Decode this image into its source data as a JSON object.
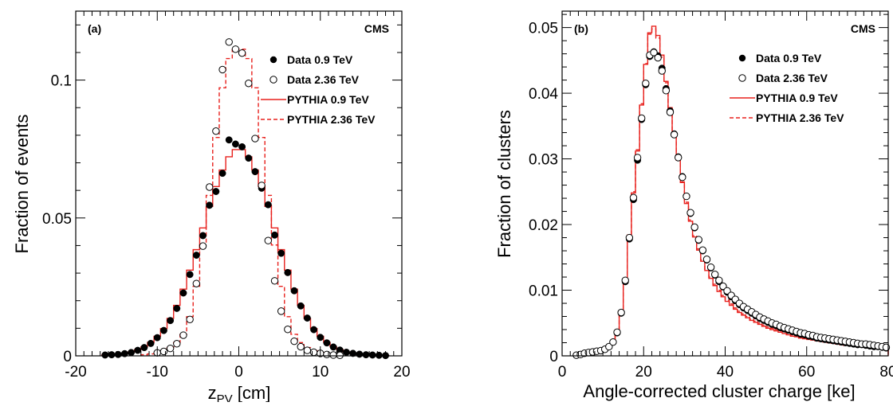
{
  "chart_data": [
    {
      "type": "line",
      "panel_label": "(a)",
      "experiment_label": "CMS",
      "xlabel": "z",
      "xlabel_sub": "PV",
      "xlabel_unit": " [cm]",
      "ylabel": "Fraction of events",
      "xlim": [
        -20,
        20
      ],
      "ylim": [
        0,
        0.125
      ],
      "xticks": [
        -20,
        -10,
        0,
        10,
        20
      ],
      "yticks": [
        0,
        0.05,
        0.1
      ],
      "ytick_labels": [
        "0",
        "0.05",
        "0.1"
      ],
      "legend_position": "top-right",
      "colors": {
        "data": "#000000",
        "pythia": "#e8211d"
      },
      "bin_width": 0.8,
      "series": [
        {
          "name": "Data 0.9 TeV",
          "style": "filled-circle",
          "x": [
            -16.4,
            -15.6,
            -14.8,
            -14.0,
            -13.2,
            -12.4,
            -11.6,
            -10.8,
            -10.0,
            -9.2,
            -8.4,
            -7.6,
            -6.8,
            -6.0,
            -5.2,
            -4.4,
            -3.6,
            -2.8,
            -2.0,
            -1.2,
            -0.4,
            0.4,
            1.2,
            2.0,
            2.8,
            3.6,
            4.4,
            5.2,
            6.0,
            6.8,
            7.6,
            8.4,
            9.2,
            10.0,
            10.8,
            11.6,
            12.4,
            13.2,
            14.0,
            14.8,
            15.6,
            16.4,
            17.2,
            18.0
          ],
          "y": [
            0.0003,
            0.0004,
            0.0005,
            0.0008,
            0.0012,
            0.002,
            0.003,
            0.0045,
            0.0066,
            0.0092,
            0.0128,
            0.0172,
            0.0228,
            0.0295,
            0.0365,
            0.0436,
            0.0546,
            0.0596,
            0.0662,
            0.0783,
            0.0768,
            0.0758,
            0.0717,
            0.0668,
            0.0608,
            0.0548,
            0.0438,
            0.0372,
            0.0302,
            0.0236,
            0.0181,
            0.0137,
            0.0095,
            0.0067,
            0.0047,
            0.0032,
            0.0021,
            0.0013,
            0.0009,
            0.0006,
            0.0004,
            0.0003,
            0.0002,
            0.0001
          ]
        },
        {
          "name": "Data 2.36 TeV",
          "style": "open-circle",
          "x": [
            -10.0,
            -9.2,
            -8.4,
            -7.6,
            -6.8,
            -6.0,
            -5.2,
            -4.4,
            -3.6,
            -2.8,
            -2.0,
            -1.2,
            -0.4,
            0.4,
            1.2,
            2.0,
            2.8,
            3.6,
            4.4,
            5.2,
            6.0,
            6.8,
            7.6,
            8.4,
            9.2,
            10.0,
            10.8,
            11.6,
            12.4
          ],
          "y": [
            0.0011,
            0.0016,
            0.0027,
            0.0044,
            0.0075,
            0.0132,
            0.0262,
            0.0398,
            0.0612,
            0.0815,
            0.1038,
            0.1138,
            0.1112,
            0.1098,
            0.0988,
            0.0788,
            0.0618,
            0.0418,
            0.0272,
            0.0162,
            0.0096,
            0.0053,
            0.0033,
            0.002,
            0.0013,
            0.0009,
            0.0005,
            0.0003,
            0.0002
          ]
        },
        {
          "name": "PYTHIA 0.9 TeV",
          "style": "solid-step",
          "x": [
            -16.4,
            -15.6,
            -14.8,
            -14.0,
            -13.2,
            -12.4,
            -11.6,
            -10.8,
            -10.0,
            -9.2,
            -8.4,
            -7.6,
            -6.8,
            -6.0,
            -5.2,
            -4.4,
            -3.6,
            -2.8,
            -2.0,
            -1.2,
            -0.4,
            0.4,
            1.2,
            2.0,
            2.8,
            3.6,
            4.4,
            5.2,
            6.0,
            6.8,
            7.6,
            8.4,
            9.2,
            10.0,
            10.8,
            11.6,
            12.4,
            13.2,
            14.0,
            14.8,
            15.6,
            16.4,
            17.2,
            18.0
          ],
          "y": [
            0.0003,
            0.0004,
            0.0006,
            0.0009,
            0.0014,
            0.0022,
            0.0033,
            0.0049,
            0.0071,
            0.0099,
            0.0136,
            0.0183,
            0.0242,
            0.0311,
            0.0385,
            0.0464,
            0.0542,
            0.0614,
            0.0674,
            0.0722,
            0.0748,
            0.0748,
            0.0722,
            0.0674,
            0.0614,
            0.0542,
            0.0464,
            0.0385,
            0.0311,
            0.0242,
            0.0183,
            0.0136,
            0.0099,
            0.0071,
            0.0049,
            0.0033,
            0.0022,
            0.0014,
            0.0009,
            0.0006,
            0.0004,
            0.0003,
            0.0002,
            0.0001
          ]
        },
        {
          "name": "PYTHIA 2.36 TeV",
          "style": "dashed-step",
          "x": [
            -11.6,
            -10.8,
            -10.0,
            -9.2,
            -8.4,
            -7.6,
            -6.8,
            -6.0,
            -5.2,
            -4.4,
            -3.6,
            -2.8,
            -2.0,
            -1.2,
            -0.4,
            0.4,
            1.2,
            2.0,
            2.8,
            3.6,
            4.4,
            5.2,
            6.0,
            6.8,
            7.6,
            8.4,
            9.2,
            10.0,
            10.8,
            11.6,
            12.4
          ],
          "y": [
            0.0004,
            0.0007,
            0.0012,
            0.0019,
            0.003,
            0.0048,
            0.0078,
            0.0142,
            0.0252,
            0.0402,
            0.0582,
            0.0792,
            0.0972,
            0.1078,
            0.1112,
            0.1112,
            0.1078,
            0.0972,
            0.0792,
            0.0582,
            0.0402,
            0.0252,
            0.0142,
            0.0078,
            0.0048,
            0.003,
            0.0019,
            0.0012,
            0.0007,
            0.0004,
            0.0002
          ]
        }
      ]
    },
    {
      "type": "line",
      "panel_label": "(b)",
      "experiment_label": "CMS",
      "xlabel": "Angle-corrected cluster charge [ke]",
      "ylabel": "Fraction of clusters",
      "xlim": [
        0,
        80
      ],
      "ylim": [
        0,
        0.0525
      ],
      "xticks": [
        0,
        20,
        40,
        60,
        80
      ],
      "yticks": [
        0,
        0.01,
        0.02,
        0.03,
        0.04,
        0.05
      ],
      "ytick_labels": [
        "0",
        "0.01",
        "0.02",
        "0.03",
        "0.04",
        "0.05"
      ],
      "legend_position": "top-right",
      "colors": {
        "data": "#000000",
        "pythia": "#e8211d"
      },
      "bin_width": 1,
      "series": [
        {
          "name": "Data 0.9 TeV",
          "style": "filled-circle",
          "x": [
            3.5,
            4.5,
            5.5,
            6.5,
            7.5,
            8.5,
            9.5,
            10.5,
            11.5,
            12.5,
            13.5,
            14.5,
            15.5,
            16.5,
            17.5,
            18.5,
            19.5,
            20.5,
            21.5,
            22.5,
            23.5,
            24.5,
            25.5,
            26.5,
            27.5,
            28.5,
            29.5,
            30.5,
            31.5,
            32.5,
            33.5,
            34.5,
            35.5,
            36.5,
            37.5,
            38.5,
            39.5,
            40.5,
            41.5,
            42.5,
            43.5,
            44.5,
            45.5,
            46.5,
            47.5,
            48.5,
            49.5,
            50.5,
            51.5,
            52.5,
            53.5,
            54.5,
            55.5,
            56.5,
            57.5,
            58.5,
            59.5,
            60.5,
            61.5,
            62.5,
            63.5,
            64.5,
            65.5,
            66.5,
            67.5,
            68.5,
            69.5,
            70.5,
            71.5,
            72.5,
            73.5,
            74.5,
            75.5,
            76.5,
            77.5,
            78.5,
            79.5
          ],
          "y": [
            0.0001,
            0.0002,
            0.0004,
            0.0005,
            0.0006,
            0.0007,
            0.0008,
            0.001,
            0.0014,
            0.0021,
            0.0035,
            0.0065,
            0.0113,
            0.0178,
            0.0238,
            0.0298,
            0.036,
            0.0413,
            0.0456,
            0.0463,
            0.0457,
            0.0438,
            0.0407,
            0.0373,
            0.0338,
            0.0303,
            0.0273,
            0.0243,
            0.0217,
            0.0195,
            0.0176,
            0.016,
            0.0146,
            0.0134,
            0.0123,
            0.0113,
            0.0105,
            0.0097,
            0.009,
            0.0084,
            0.0078,
            0.0073,
            0.0069,
            0.0065,
            0.0061,
            0.0057,
            0.0054,
            0.0051,
            0.0048,
            0.0046,
            0.0043,
            0.0041,
            0.0039,
            0.0037,
            0.0035,
            0.0033,
            0.0032,
            0.003,
            0.0029,
            0.0027,
            0.0026,
            0.0025,
            0.0024,
            0.0023,
            0.0022,
            0.0021,
            0.002,
            0.0019,
            0.0018,
            0.0017,
            0.0017,
            0.0016,
            0.0015,
            0.0014,
            0.0014,
            0.0013,
            0.0012
          ]
        },
        {
          "name": "Data 2.36 TeV",
          "style": "open-circle",
          "x": [
            3.5,
            4.5,
            5.5,
            6.5,
            7.5,
            8.5,
            9.5,
            10.5,
            11.5,
            12.5,
            13.5,
            14.5,
            15.5,
            16.5,
            17.5,
            18.5,
            19.5,
            20.5,
            21.5,
            22.5,
            23.5,
            24.5,
            25.5,
            26.5,
            27.5,
            28.5,
            29.5,
            30.5,
            31.5,
            32.5,
            33.5,
            34.5,
            35.5,
            36.5,
            37.5,
            38.5,
            39.5,
            40.5,
            41.5,
            42.5,
            43.5,
            44.5,
            45.5,
            46.5,
            47.5,
            48.5,
            49.5,
            50.5,
            51.5,
            52.5,
            53.5,
            54.5,
            55.5,
            56.5,
            57.5,
            58.5,
            59.5,
            60.5,
            61.5,
            62.5,
            63.5,
            64.5,
            65.5,
            66.5,
            67.5,
            68.5,
            69.5,
            70.5,
            71.5,
            72.5,
            73.5,
            74.5,
            75.5,
            76.5,
            77.5,
            78.5,
            79.5
          ],
          "y": [
            0.0001,
            0.0002,
            0.0004,
            0.0005,
            0.0006,
            0.0007,
            0.0008,
            0.001,
            0.0014,
            0.0021,
            0.0036,
            0.0066,
            0.0115,
            0.018,
            0.0241,
            0.0302,
            0.0362,
            0.0415,
            0.0458,
            0.0462,
            0.0454,
            0.0434,
            0.0404,
            0.0371,
            0.0337,
            0.0302,
            0.0272,
            0.0243,
            0.0218,
            0.0196,
            0.0177,
            0.0161,
            0.0147,
            0.0135,
            0.0124,
            0.0115,
            0.0106,
            0.0099,
            0.0092,
            0.0086,
            0.008,
            0.0075,
            0.0071,
            0.0067,
            0.0063,
            0.0059,
            0.0056,
            0.0053,
            0.005,
            0.0048,
            0.0045,
            0.0043,
            0.0041,
            0.0039,
            0.0037,
            0.0035,
            0.0034,
            0.0032,
            0.0031,
            0.0029,
            0.0028,
            0.0027,
            0.0026,
            0.0025,
            0.0024,
            0.0023,
            0.0022,
            0.0021,
            0.002,
            0.0019,
            0.0018,
            0.0018,
            0.0017,
            0.0016,
            0.0015,
            0.0014,
            0.0013
          ]
        },
        {
          "name": "PYTHIA 0.9 TeV",
          "style": "solid-step",
          "x": [
            3.5,
            4.5,
            5.5,
            6.5,
            7.5,
            8.5,
            9.5,
            10.5,
            11.5,
            12.5,
            13.5,
            14.5,
            15.5,
            16.5,
            17.5,
            18.5,
            19.5,
            20.5,
            21.5,
            22.5,
            23.5,
            24.5,
            25.5,
            26.5,
            27.5,
            28.5,
            29.5,
            30.5,
            31.5,
            32.5,
            33.5,
            34.5,
            35.5,
            36.5,
            37.5,
            38.5,
            39.5,
            40.5,
            41.5,
            42.5,
            43.5,
            44.5,
            45.5,
            46.5,
            47.5,
            48.5,
            49.5,
            50.5,
            51.5,
            52.5,
            53.5,
            54.5,
            55.5,
            56.5,
            57.5,
            58.5,
            59.5,
            60.5,
            61.5,
            62.5,
            63.5,
            64.5,
            65.5,
            66.5,
            67.5,
            68.5,
            69.5,
            70.5,
            71.5,
            72.5,
            73.5,
            74.5,
            75.5,
            76.5,
            77.5,
            78.5,
            79.5
          ],
          "y": [
            0.0001,
            0.0002,
            0.0003,
            0.0004,
            0.0005,
            0.0006,
            0.0007,
            0.0009,
            0.0013,
            0.002,
            0.0034,
            0.0064,
            0.0114,
            0.0182,
            0.0248,
            0.0312,
            0.0382,
            0.0444,
            0.0492,
            0.0502,
            0.0488,
            0.0458,
            0.0418,
            0.0378,
            0.0338,
            0.0298,
            0.0264,
            0.0232,
            0.0205,
            0.0181,
            0.0161,
            0.0144,
            0.013,
            0.0118,
            0.0107,
            0.0098,
            0.009,
            0.0083,
            0.0077,
            0.0071,
            0.0066,
            0.0062,
            0.0058,
            0.0054,
            0.0051,
            0.0048,
            0.0045,
            0.0042,
            0.004,
            0.0038,
            0.0036,
            0.0034,
            0.0032,
            0.003,
            0.0029,
            0.0027,
            0.0026,
            0.0025,
            0.0024,
            0.0023,
            0.0022,
            0.0021,
            0.002,
            0.0019,
            0.0018,
            0.0017,
            0.0016,
            0.0016,
            0.0015,
            0.0014,
            0.0014,
            0.0013,
            0.0012,
            0.0012,
            0.0011,
            0.0011,
            0.001
          ]
        },
        {
          "name": "PYTHIA 2.36 TeV",
          "style": "dashed-step",
          "x": [
            3.5,
            4.5,
            5.5,
            6.5,
            7.5,
            8.5,
            9.5,
            10.5,
            11.5,
            12.5,
            13.5,
            14.5,
            15.5,
            16.5,
            17.5,
            18.5,
            19.5,
            20.5,
            21.5,
            22.5,
            23.5,
            24.5,
            25.5,
            26.5,
            27.5,
            28.5,
            29.5,
            30.5,
            31.5,
            32.5,
            33.5,
            34.5,
            35.5,
            36.5,
            37.5,
            38.5,
            39.5,
            40.5,
            41.5,
            42.5,
            43.5,
            44.5,
            45.5,
            46.5,
            47.5,
            48.5,
            49.5,
            50.5,
            51.5,
            52.5,
            53.5,
            54.5,
            55.5,
            56.5,
            57.5,
            58.5,
            59.5,
            60.5,
            61.5,
            62.5,
            63.5,
            64.5,
            65.5,
            66.5,
            67.5,
            68.5,
            69.5,
            70.5,
            71.5,
            72.5,
            73.5,
            74.5,
            75.5,
            76.5,
            77.5,
            78.5,
            79.5
          ],
          "y": [
            0.0001,
            0.0002,
            0.0003,
            0.0004,
            0.0005,
            0.0006,
            0.0007,
            0.0009,
            0.0013,
            0.002,
            0.0035,
            0.0065,
            0.0116,
            0.0184,
            0.025,
            0.0314,
            0.0384,
            0.0445,
            0.049,
            0.0498,
            0.0484,
            0.0455,
            0.0416,
            0.0377,
            0.0338,
            0.0299,
            0.0265,
            0.0234,
            0.0207,
            0.0183,
            0.0163,
            0.0146,
            0.0132,
            0.012,
            0.0109,
            0.01,
            0.0092,
            0.0085,
            0.0079,
            0.0073,
            0.0068,
            0.0064,
            0.006,
            0.0056,
            0.0053,
            0.005,
            0.0047,
            0.0044,
            0.0042,
            0.004,
            0.0038,
            0.0036,
            0.0034,
            0.0032,
            0.0031,
            0.0029,
            0.0028,
            0.0027,
            0.0026,
            0.0025,
            0.0024,
            0.0023,
            0.0022,
            0.0021,
            0.002,
            0.0019,
            0.0018,
            0.0018,
            0.0017,
            0.0016,
            0.0016,
            0.0015,
            0.0014,
            0.0014,
            0.0013,
            0.0013,
            0.0012
          ]
        }
      ]
    }
  ]
}
